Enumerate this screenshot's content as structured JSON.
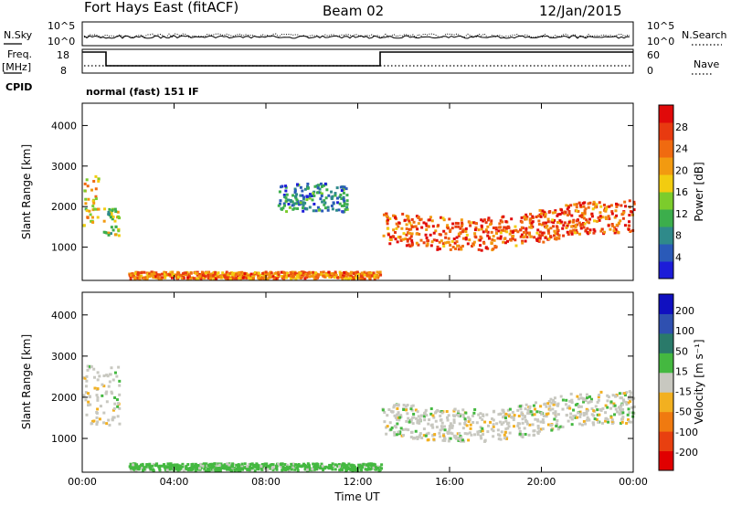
{
  "header": {
    "station": "Fort Hays East (fitACF)",
    "beam": "Beam 02",
    "date": "12/Jan/2015"
  },
  "strips": {
    "nsky_label": "N.Sky",
    "nsearch_label": "N.Search",
    "nsky_ticks": [
      "10^5",
      "10^0"
    ],
    "freq_label": "Freq.",
    "freq_unit": "[MHz]",
    "freq_ticks": [
      "18",
      "8"
    ],
    "nave_label": "Nave",
    "nave_ticks": [
      "60",
      "0"
    ],
    "cpid_label": "CPID",
    "cpid_text": "normal (fast) 151 IF"
  },
  "chart_data": [
    {
      "type": "heatmap",
      "title": "",
      "xlabel": "Time UT",
      "ylabel": "Slant Range [km]",
      "x_ticks": [
        "00:00",
        "04:00",
        "08:00",
        "12:00",
        "16:00",
        "20:00",
        "00:00"
      ],
      "y_ticks": [
        1000,
        2000,
        3000,
        4000
      ],
      "x_range_hours": [
        0,
        24
      ],
      "ylim": [
        180,
        4550
      ],
      "colorbar": {
        "label": "Power [dB]",
        "ticks": [
          4,
          8,
          12,
          16,
          20,
          24,
          28
        ],
        "colors": [
          "#1c1cd8",
          "#2a5ab8",
          "#2f8a8a",
          "#3cae4c",
          "#7ccc2c",
          "#f2cc10",
          "#f29a10",
          "#f06a10",
          "#e83a10",
          "#e00a0a"
        ]
      },
      "echo_regions": [
        {
          "name": "early F-region echoes",
          "t": [
            0.0,
            0.7
          ],
          "range": [
            1550,
            2800
          ],
          "power_db": 16
        },
        {
          "name": "early F-region echoes 2",
          "t": [
            0.9,
            1.6
          ],
          "range": [
            1300,
            2050
          ],
          "power_db": 12
        },
        {
          "name": "near-range E-region",
          "t": [
            2.0,
            13.0
          ],
          "range": [
            250,
            420
          ],
          "power_db": 20
        },
        {
          "name": "mid-day scatter",
          "t": [
            8.5,
            11.5
          ],
          "range": [
            1900,
            2600
          ],
          "power_db": 6
        },
        {
          "name": "afternoon F-region band",
          "t": [
            13.0,
            24.0
          ],
          "range": [
            1000,
            2400
          ],
          "power_db": 22
        }
      ]
    },
    {
      "type": "heatmap",
      "title": "",
      "xlabel": "Time UT",
      "ylabel": "Slant Range [km]",
      "x_ticks": [
        "00:00",
        "04:00",
        "08:00",
        "12:00",
        "16:00",
        "20:00",
        "00:00"
      ],
      "y_ticks": [
        1000,
        2000,
        3000,
        4000
      ],
      "x_range_hours": [
        0,
        24
      ],
      "ylim": [
        180,
        4550
      ],
      "colorbar": {
        "label": "Velocity [m s⁻¹]",
        "ticks": [
          200,
          100,
          50,
          15,
          -15,
          -50,
          -100,
          -200
        ],
        "colors": [
          "#1010c0",
          "#2f50b0",
          "#2a7a6a",
          "#44b840",
          "#c8c8c0",
          "#f2b020",
          "#f07a10",
          "#e84010",
          "#e00000"
        ]
      },
      "echo_regions": [
        {
          "name": "early echoes",
          "t": [
            0.0,
            1.6
          ],
          "range": [
            1300,
            2800
          ],
          "velocity": 0
        },
        {
          "name": "near-range E-region",
          "t": [
            2.0,
            13.0
          ],
          "range": [
            250,
            420
          ],
          "velocity": 30
        },
        {
          "name": "afternoon ground scatter",
          "t": [
            13.0,
            24.0
          ],
          "range": [
            1000,
            2400
          ],
          "velocity": 0
        }
      ]
    }
  ]
}
